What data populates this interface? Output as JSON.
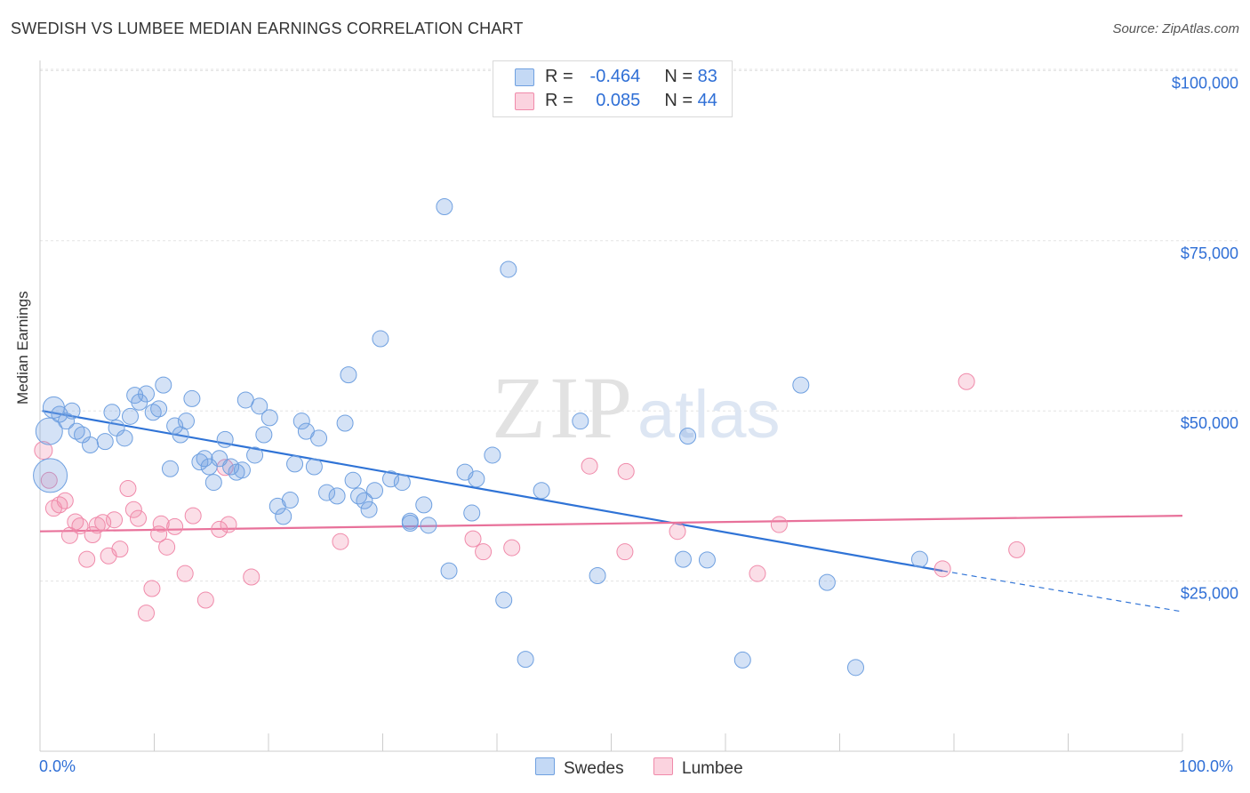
{
  "title": "SWEDISH VS LUMBEE MEDIAN EARNINGS CORRELATION CHART",
  "source": "Source: ZipAtlas.com",
  "watermark": {
    "zip": "ZIP",
    "atlas": "atlas"
  },
  "legend": {
    "r_label": "R =",
    "n_label": "N =",
    "swedes": {
      "r": "-0.464",
      "n": "83"
    },
    "lumbee": {
      "r": "0.085",
      "n": "44"
    }
  },
  "chart_data": {
    "type": "scatter",
    "title": "SWEDISH VS LUMBEE MEDIAN EARNINGS CORRELATION CHART",
    "xlabel": "",
    "ylabel": "Median Earnings",
    "xlim": [
      0,
      100
    ],
    "ylim": [
      0,
      105000
    ],
    "x_tick_labels": [
      "0.0%",
      "100.0%"
    ],
    "y_ticks": [
      25000,
      50000,
      75000,
      100000
    ],
    "y_tick_labels": [
      "$25,000",
      "$50,000",
      "$75,000",
      "$100,000"
    ],
    "grid": true,
    "legend_position": "top-center",
    "colors": {
      "swedes": "#6fa0e0",
      "swedes_line": "#2f73d6",
      "lumbee": "#f08aaa",
      "lumbee_line": "#e8719a",
      "axis_text": "#2f6fd6"
    },
    "series": [
      {
        "name": "Swedes",
        "r": -0.464,
        "n": 83,
        "trend": {
          "x0": 0.2,
          "y0": 50000,
          "x1": 79,
          "y1": 26500,
          "dash_to_x": 100,
          "dash_to_y": 20500
        },
        "points": [
          [
            1.2,
            50500
          ],
          [
            0.8,
            47000
          ],
          [
            0.9,
            40500
          ],
          [
            1.7,
            49500
          ],
          [
            2.3,
            48500
          ],
          [
            2.8,
            50000
          ],
          [
            3.2,
            47000
          ],
          [
            3.7,
            46500
          ],
          [
            4.4,
            45000
          ],
          [
            5.7,
            45500
          ],
          [
            6.3,
            49800
          ],
          [
            6.7,
            47500
          ],
          [
            7.4,
            46000
          ],
          [
            7.9,
            49200
          ],
          [
            8.3,
            52300
          ],
          [
            8.7,
            51300
          ],
          [
            9.3,
            52500
          ],
          [
            9.9,
            49800
          ],
          [
            10.4,
            50300
          ],
          [
            10.8,
            53800
          ],
          [
            11.4,
            41500
          ],
          [
            11.8,
            47800
          ],
          [
            12.3,
            46500
          ],
          [
            12.8,
            48500
          ],
          [
            13.3,
            51800
          ],
          [
            14.0,
            42500
          ],
          [
            14.4,
            43000
          ],
          [
            14.8,
            41800
          ],
          [
            15.2,
            39500
          ],
          [
            15.7,
            43000
          ],
          [
            16.2,
            45800
          ],
          [
            16.7,
            41800
          ],
          [
            17.2,
            41000
          ],
          [
            17.7,
            41300
          ],
          [
            18.0,
            51600
          ],
          [
            18.8,
            43500
          ],
          [
            19.2,
            50700
          ],
          [
            19.6,
            46500
          ],
          [
            20.1,
            49000
          ],
          [
            20.8,
            36000
          ],
          [
            21.3,
            34500
          ],
          [
            21.9,
            36900
          ],
          [
            22.3,
            42200
          ],
          [
            22.9,
            48500
          ],
          [
            23.3,
            47000
          ],
          [
            24.0,
            41800
          ],
          [
            24.4,
            46000
          ],
          [
            25.1,
            38000
          ],
          [
            26.0,
            37500
          ],
          [
            26.7,
            48200
          ],
          [
            27.0,
            55300
          ],
          [
            27.4,
            39800
          ],
          [
            27.9,
            37500
          ],
          [
            28.4,
            36800
          ],
          [
            28.8,
            35500
          ],
          [
            29.3,
            38300
          ],
          [
            29.8,
            60600
          ],
          [
            30.7,
            40000
          ],
          [
            31.7,
            39500
          ],
          [
            32.4,
            33500
          ],
          [
            32.4,
            33800
          ],
          [
            33.6,
            36200
          ],
          [
            34.0,
            33200
          ],
          [
            35.4,
            80000
          ],
          [
            35.8,
            26500
          ],
          [
            37.2,
            41000
          ],
          [
            37.8,
            35000
          ],
          [
            38.2,
            40000
          ],
          [
            39.6,
            43500
          ],
          [
            40.6,
            22200
          ],
          [
            41.0,
            70800
          ],
          [
            42.5,
            13500
          ],
          [
            43.9,
            38300
          ],
          [
            47.3,
            48500
          ],
          [
            48.8,
            25800
          ],
          [
            56.3,
            28200
          ],
          [
            56.7,
            46300
          ],
          [
            58.4,
            28100
          ],
          [
            61.5,
            13400
          ],
          [
            66.6,
            53800
          ],
          [
            68.9,
            24800
          ],
          [
            71.4,
            12300
          ],
          [
            77.0,
            28200
          ]
        ]
      },
      {
        "name": "Lumbee",
        "r": 0.085,
        "n": 44,
        "trend": {
          "x0": 0,
          "y0": 32300,
          "x1": 100,
          "y1": 34600
        },
        "points": [
          [
            0.3,
            44200
          ],
          [
            0.8,
            39800
          ],
          [
            1.2,
            35700
          ],
          [
            1.7,
            36200
          ],
          [
            2.2,
            36800
          ],
          [
            2.6,
            31700
          ],
          [
            3.1,
            33700
          ],
          [
            3.5,
            33100
          ],
          [
            4.1,
            28200
          ],
          [
            4.6,
            31800
          ],
          [
            5.0,
            33200
          ],
          [
            5.5,
            33600
          ],
          [
            6.0,
            28700
          ],
          [
            6.5,
            34000
          ],
          [
            7.0,
            29700
          ],
          [
            7.7,
            38600
          ],
          [
            8.2,
            35500
          ],
          [
            8.6,
            34200
          ],
          [
            9.3,
            20300
          ],
          [
            9.8,
            23900
          ],
          [
            10.4,
            31900
          ],
          [
            10.6,
            33400
          ],
          [
            11.1,
            30000
          ],
          [
            11.8,
            33000
          ],
          [
            12.7,
            26100
          ],
          [
            13.4,
            34600
          ],
          [
            14.5,
            22200
          ],
          [
            15.7,
            32600
          ],
          [
            16.2,
            41700
          ],
          [
            16.5,
            33300
          ],
          [
            18.5,
            25600
          ],
          [
            26.3,
            30800
          ],
          [
            37.9,
            31200
          ],
          [
            38.8,
            29300
          ],
          [
            41.3,
            29900
          ],
          [
            48.1,
            41900
          ],
          [
            51.2,
            29300
          ],
          [
            51.3,
            41100
          ],
          [
            55.8,
            32300
          ],
          [
            62.8,
            26100
          ],
          [
            64.7,
            33300
          ],
          [
            79.0,
            26800
          ],
          [
            81.1,
            54300
          ],
          [
            85.5,
            29600
          ]
        ]
      }
    ]
  },
  "bottom_legend": {
    "swedes": "Swedes",
    "lumbee": "Lumbee"
  }
}
